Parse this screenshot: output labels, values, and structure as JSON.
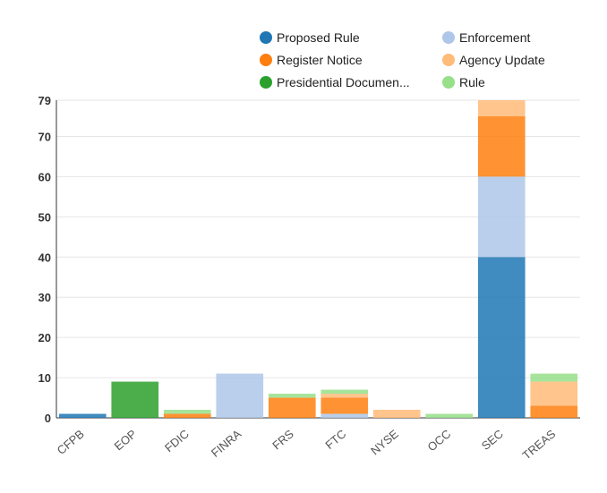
{
  "chart_data": {
    "type": "bar",
    "stacked": true,
    "categories": [
      "CFPB",
      "EOP",
      "FDIC",
      "FINRA",
      "FRS",
      "FTC",
      "NYSE",
      "OCC",
      "SEC",
      "TREAS"
    ],
    "series": [
      {
        "name": "Proposed Rule",
        "color": "#1f77b4",
        "values": [
          1,
          0,
          0,
          0,
          0,
          0,
          0,
          0,
          40,
          0
        ]
      },
      {
        "name": "Enforcement",
        "color": "#aec7e8",
        "values": [
          0,
          0,
          0,
          11,
          0,
          1,
          0,
          0,
          20,
          0
        ]
      },
      {
        "name": "Register Notice",
        "color": "#ff7f0e",
        "values": [
          0,
          0,
          1,
          0,
          5,
          4,
          0,
          0,
          15,
          3
        ]
      },
      {
        "name": "Agency Update",
        "color": "#ffbb78",
        "values": [
          0,
          0,
          0,
          0,
          0,
          1,
          2,
          0,
          4,
          6
        ]
      },
      {
        "name": "Presidential Documen...",
        "color": "#2ca02c",
        "values": [
          0,
          9,
          0,
          0,
          0,
          0,
          0,
          0,
          0,
          0
        ]
      },
      {
        "name": "Rule",
        "color": "#98df8a",
        "values": [
          0,
          0,
          1,
          0,
          1,
          1,
          0,
          1,
          0,
          2
        ]
      }
    ],
    "y_ticks": [
      0,
      10,
      20,
      30,
      40,
      50,
      60,
      70,
      79
    ],
    "ylim": [
      0,
      79
    ],
    "grid": true,
    "legend_position": "top-right",
    "xlabel": "",
    "ylabel": ""
  }
}
